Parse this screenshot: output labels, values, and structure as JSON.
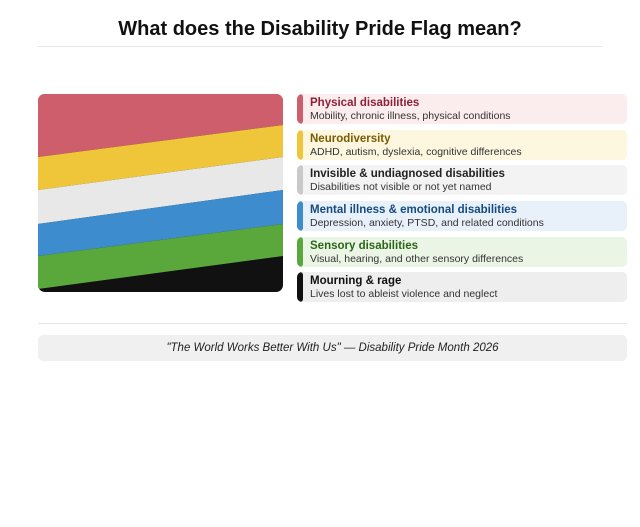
{
  "title": "What does the Disability Pride Flag mean?",
  "flag": {
    "stripe_colors": [
      "#cf5e6d",
      "#efc63a",
      "#e8e8e8",
      "#3d8ccd",
      "#5aa83b"
    ],
    "base_color": "#111111"
  },
  "legend": [
    {
      "label": "Physical disabilities",
      "description": "Mobility, chronic illness, physical conditions",
      "color": "#cf5e6d",
      "label_color": "#8f1f36",
      "bg_color": "#fbecee"
    },
    {
      "label": "Neurodiversity",
      "description": "ADHD, autism, dyslexia, cognitive differences",
      "color": "#efc63a",
      "label_color": "#7a5b00",
      "bg_color": "#fdf7e0"
    },
    {
      "label": "Invisible & undiagnosed disabilities",
      "description": "Disabilities not visible or not yet named",
      "color": "#c9c9c9",
      "label_color": "#222222",
      "bg_color": "#f3f3f3"
    },
    {
      "label": "Mental illness & emotional disabilities",
      "description": "Depression, anxiety, PTSD, and related conditions",
      "color": "#3d8ccd",
      "label_color": "#154a80",
      "bg_color": "#e8f1fa"
    },
    {
      "label": "Sensory disabilities",
      "description": "Visual, hearing, and other sensory differences",
      "color": "#5aa83b",
      "label_color": "#2c6617",
      "bg_color": "#ebf5e6"
    },
    {
      "label": "Mourning & rage",
      "description": "Lives lost to ableist violence and neglect",
      "color": "#111111",
      "label_color": "#111111",
      "bg_color": "#eeeeee"
    }
  ],
  "footer": "\"The World Works Better With Us\" — Disability Pride Month 2026"
}
